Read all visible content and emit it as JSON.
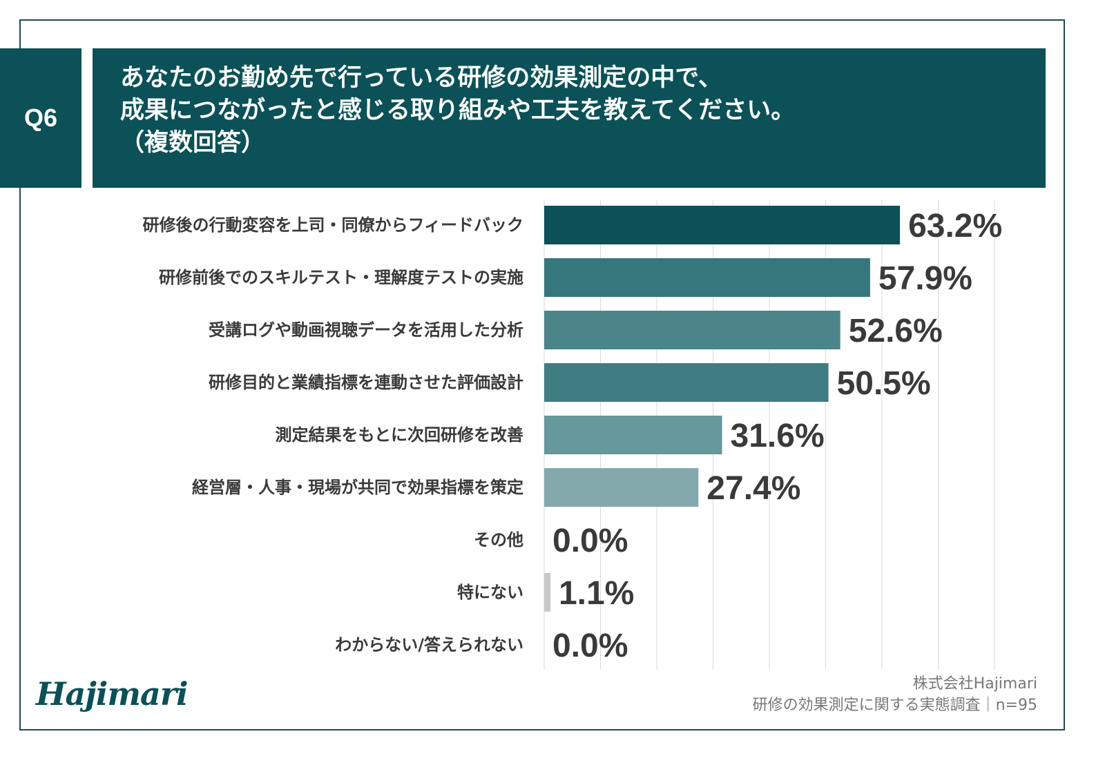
{
  "question": {
    "number": "Q6",
    "title_lines": [
      "あなたのお勤め先で行っている研修の効果測定の中で、",
      "成果につながったと感じる取り組みや工夫を教えてください。",
      "（複数回答）"
    ]
  },
  "chart_data": {
    "type": "bar",
    "orientation": "horizontal",
    "categories": [
      "研修後の行動変容を上司・同僚からフィードバック",
      "研修前後でのスキルテスト・理解度テストの実施",
      "受講ログや動画視聴データを活用した分析",
      "研修目的と業績指標を連動させた評価設計",
      "測定結果をもとに次回研修を改善",
      "経営層・人事・現場が共同で効果指標を策定",
      "その他",
      "特にない",
      "わからない/答えられない"
    ],
    "values": [
      63.2,
      57.9,
      52.6,
      50.5,
      31.6,
      27.4,
      0.0,
      1.1,
      0.0
    ],
    "value_labels": [
      "63.2%",
      "57.9%",
      "52.6%",
      "50.5%",
      "31.6%",
      "27.4%",
      "0.0%",
      "1.1%",
      "0.0%"
    ],
    "bar_colors": [
      "#0b5157",
      "#35777c",
      "#4b858a",
      "#3f7d82",
      "#66989c",
      "#84a9ad",
      "#c8c8c8",
      "#c8c8c8",
      "#c8c8c8"
    ],
    "xlim": [
      0,
      80
    ],
    "grid_step": 10,
    "grid": true
  },
  "footer": {
    "logo": "Hajimari",
    "company": "株式会社Hajimari",
    "survey": "研修の効果測定に関する実態調査｜n=95"
  }
}
